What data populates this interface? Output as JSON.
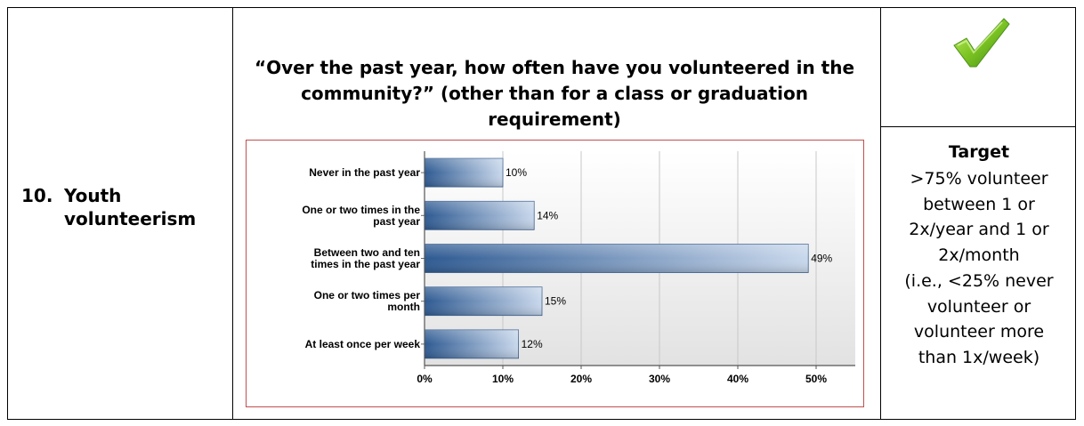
{
  "row": {
    "number": "10.",
    "label": "Youth volunteerism"
  },
  "question": "“Over the past year, how often have you volunteered in the community?” (other than for a class or graduation requirement)",
  "status": {
    "icon": "checkmark-icon",
    "color": "#7cc423"
  },
  "target": {
    "title": "Target",
    "lines": [
      ">75% volunteer",
      "between 1 or",
      "2x/year and 1 or",
      "2x/month",
      "(i.e., <25% never",
      "volunteer or",
      "volunteer more",
      "than 1x/week)"
    ]
  },
  "chart_data": {
    "type": "bar",
    "orientation": "horizontal",
    "categories": [
      [
        "Never in the past year"
      ],
      [
        "One or two times in the",
        "past year"
      ],
      [
        "Between two and ten",
        "times in the past year"
      ],
      [
        "One or two times per",
        "month"
      ],
      [
        "At least once per week"
      ]
    ],
    "values": [
      10,
      14,
      49,
      15,
      12
    ],
    "value_labels": [
      "10%",
      "14%",
      "49%",
      "15%",
      "12%"
    ],
    "xlim": [
      0,
      55
    ],
    "ticks": [
      0,
      10,
      20,
      30,
      40,
      50
    ],
    "tick_labels": [
      "0%",
      "10%",
      "20%",
      "30%",
      "40%",
      "50%"
    ],
    "grid": true,
    "bar_color_dark": "#2e5a92",
    "bar_color_light": "#c9d8ec",
    "border_color": "#c0504d"
  }
}
